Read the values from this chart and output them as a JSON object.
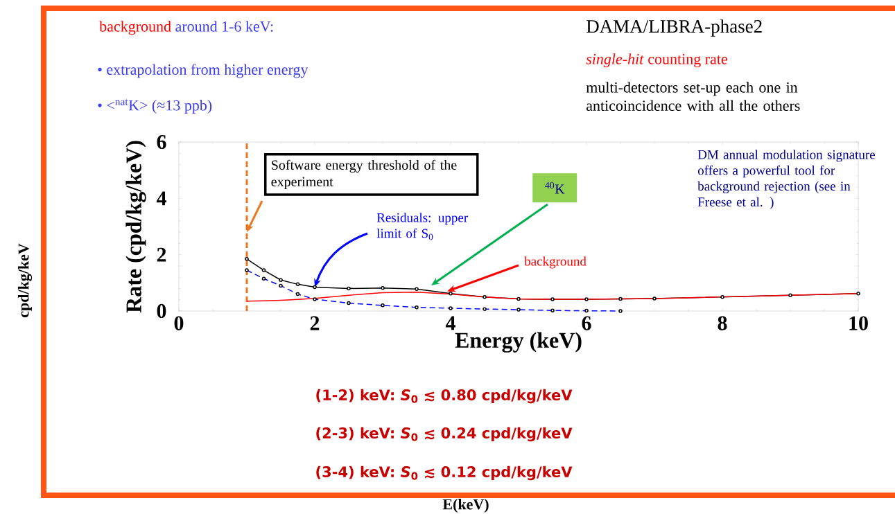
{
  "chart_data": {
    "type": "line",
    "xlabel": "Energy (keV)",
    "ylabel": "Rate (cpd/kg/keV)",
    "xlim": [
      0,
      10
    ],
    "ylim": [
      0,
      6
    ],
    "xticks": [
      0,
      2,
      4,
      6,
      8,
      10
    ],
    "yticks": [
      0,
      2,
      4,
      6
    ],
    "grid": false,
    "x": [
      1,
      1.25,
      1.5,
      1.75,
      2,
      2.5,
      3,
      3.5,
      4,
      4.5,
      5,
      5.5,
      6,
      6.5,
      7,
      8,
      9,
      10
    ],
    "series": [
      {
        "color": "#000000",
        "marker": "circle",
        "line_style": "solid",
        "values": [
          1.85,
          1.45,
          1.1,
          0.95,
          0.85,
          0.8,
          0.82,
          0.78,
          0.62,
          0.5,
          0.43,
          0.42,
          0.42,
          0.43,
          0.44,
          0.5,
          0.56,
          0.62
        ]
      },
      {
        "color": "#ff0000",
        "marker": "none",
        "line_style": "solid",
        "values": [
          0.35,
          0.36,
          0.38,
          0.41,
          0.45,
          0.56,
          0.65,
          0.67,
          0.6,
          0.5,
          0.43,
          0.42,
          0.42,
          0.43,
          0.44,
          0.5,
          0.56,
          0.62
        ]
      },
      {
        "color": "#0000ff",
        "marker": "circle",
        "line_style": "dashed",
        "values": [
          1.45,
          1.15,
          0.9,
          0.6,
          0.42,
          0.28,
          0.2,
          0.13,
          0.1,
          0.07,
          0.05,
          0.02,
          0.01,
          0,
          null,
          null,
          null,
          null
        ]
      }
    ],
    "ref_lines": [
      {
        "axis": "x",
        "value": 1,
        "color": "#e87722",
        "line_style": "dashed"
      }
    ],
    "annotations": [
      "background",
      "around 1-6 keV:",
      "• extrapolation from higher energy",
      "• <$^{nat}$K> (≈13 ppb)",
      "DAMA/LIBRA-phase2",
      "*single-hit* counting rate",
      "multi-detectors set-up each one in anticoincidence with all the others",
      {
        "text": "Software energy threshold of the experiment",
        "x": 1,
        "y": 2.8
      },
      "$^{40}$K",
      {
        "text": "Residuals: upper limit of S$_{0}$",
        "x": 2,
        "y": 0.85
      },
      {
        "text": "background",
        "x": 3.95,
        "y": 0.7
      },
      "DM annual modulation signature offers a powerful tool for background rejection (see in Freese et al. )",
      "(1-2) keV: *S*$_{0}$ ≲ 0.80 cpd/kg/keV",
      "(2-3) keV: *S*$_{0}$ ≲ 0.24 cpd/kg/keV",
      "(3-4) keV: *S*$_{0}$ ≲ 0.12 cpd/kg/keV",
      "cpd/kg/keV",
      "E(keV)"
    ]
  }
}
